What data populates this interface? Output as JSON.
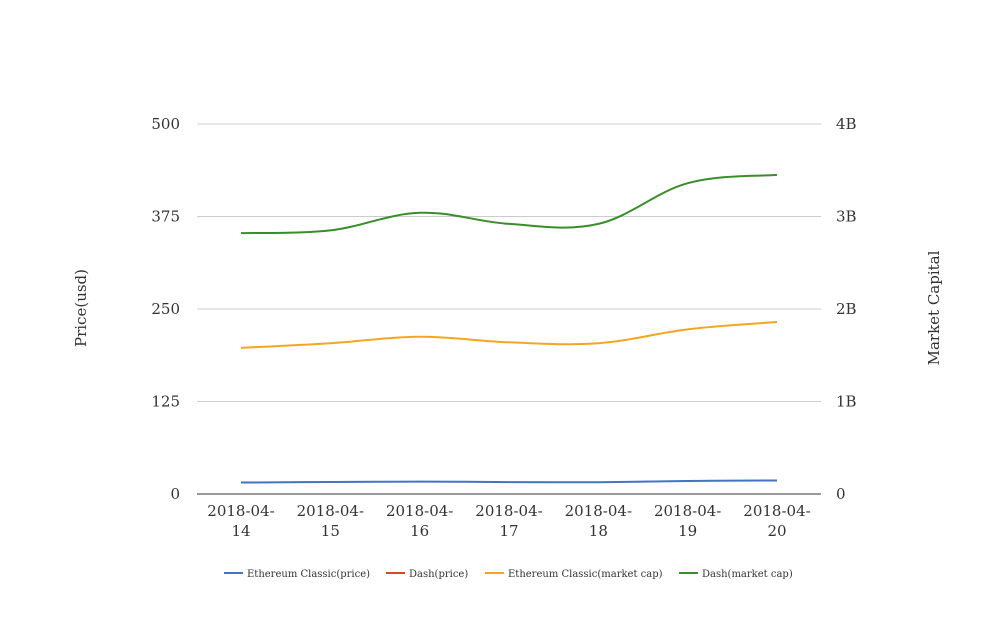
{
  "chart_data": {
    "type": "line",
    "title": "",
    "categories": [
      [
        "2018-04-",
        "14"
      ],
      [
        "2018-04-",
        "15"
      ],
      [
        "2018-04-",
        "16"
      ],
      [
        "2018-04-",
        "17"
      ],
      [
        "2018-04-",
        "18"
      ],
      [
        "2018-04-",
        "19"
      ],
      [
        "2018-04-",
        "20"
      ]
    ],
    "y_left": {
      "label": "Price(usd)",
      "min": 0,
      "max": 500,
      "ticks": [
        0,
        125,
        250,
        375,
        500
      ],
      "tick_labels": [
        "0",
        "125",
        "250",
        "375",
        "500"
      ]
    },
    "y_right": {
      "label": "Market Capital",
      "min": 0,
      "max": 4000000000,
      "ticks": [
        0,
        1000000000,
        2000000000,
        3000000000,
        4000000000
      ],
      "tick_labels": [
        "0",
        "1B",
        "2B",
        "3B",
        "4B"
      ]
    },
    "grid": true,
    "legend_position": "bottom",
    "series": [
      {
        "name": "Ethereum Classic(price)",
        "axis": "left",
        "color": "#4472c4",
        "values": [
          15.5,
          16.2,
          16.8,
          16.1,
          15.9,
          17.6,
          18.3
        ]
      },
      {
        "name": "Dash(price)",
        "axis": "left",
        "color": "#d9472b",
        "values": [
          null,
          null,
          null,
          null,
          null,
          null,
          null
        ]
      },
      {
        "name": "Ethereum Classic(market cap)",
        "axis": "right",
        "color": "#f4a621",
        "values": [
          1580000000,
          1630000000,
          1700000000,
          1640000000,
          1630000000,
          1780000000,
          1860000000
        ]
      },
      {
        "name": "Dash(market cap)",
        "axis": "right",
        "color": "#3a8d2b",
        "values": [
          2820000000,
          2850000000,
          3040000000,
          2920000000,
          2920000000,
          3360000000,
          3450000000
        ]
      }
    ]
  }
}
